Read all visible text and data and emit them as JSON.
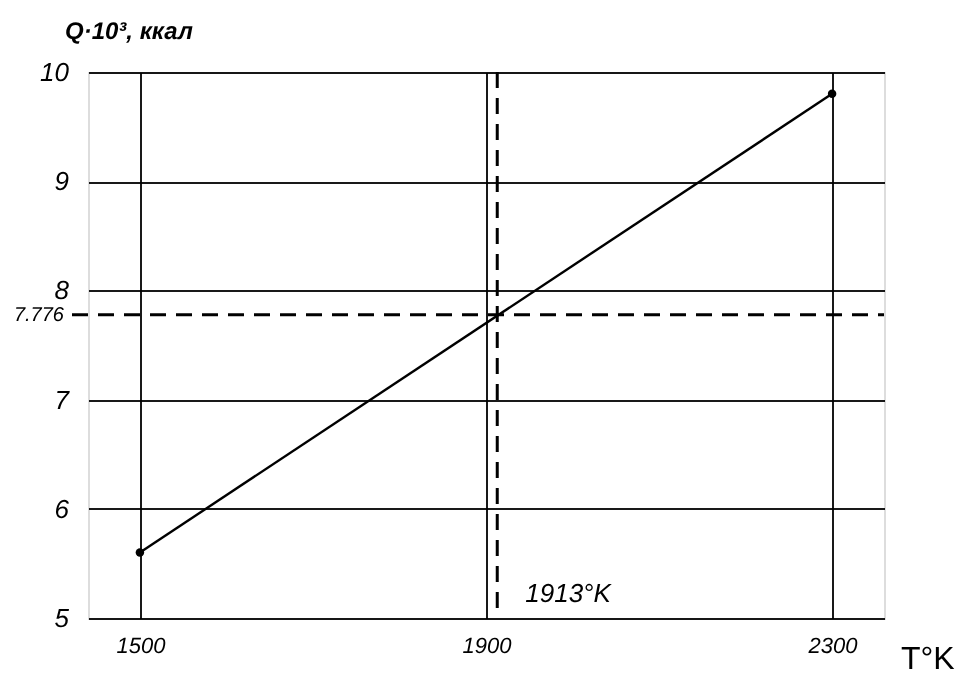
{
  "chart_data": {
    "type": "line",
    "xlabel": "T°K",
    "ylabel": "Q·10³, ккал",
    "x": [
      1500,
      2300
    ],
    "series": [
      {
        "color": "#000000",
        "values": [
          5.6,
          9.8
        ]
      }
    ],
    "xlim": [
      1440,
      2360
    ],
    "ylim": [
      5,
      10
    ],
    "xticks": [
      1500,
      1900,
      2300
    ],
    "yticks": [
      5,
      6,
      7,
      8,
      9,
      10
    ],
    "grid": true,
    "marker": "circle",
    "line_style": "solid",
    "ref_lines": [
      {
        "axis": "y",
        "value": 7.776,
        "label": "7.776",
        "line_style": "dashed",
        "color": "#000000"
      },
      {
        "axis": "x",
        "value": 1913,
        "label": "1913°K",
        "line_style": "dashed",
        "color": "#000000"
      }
    ]
  }
}
